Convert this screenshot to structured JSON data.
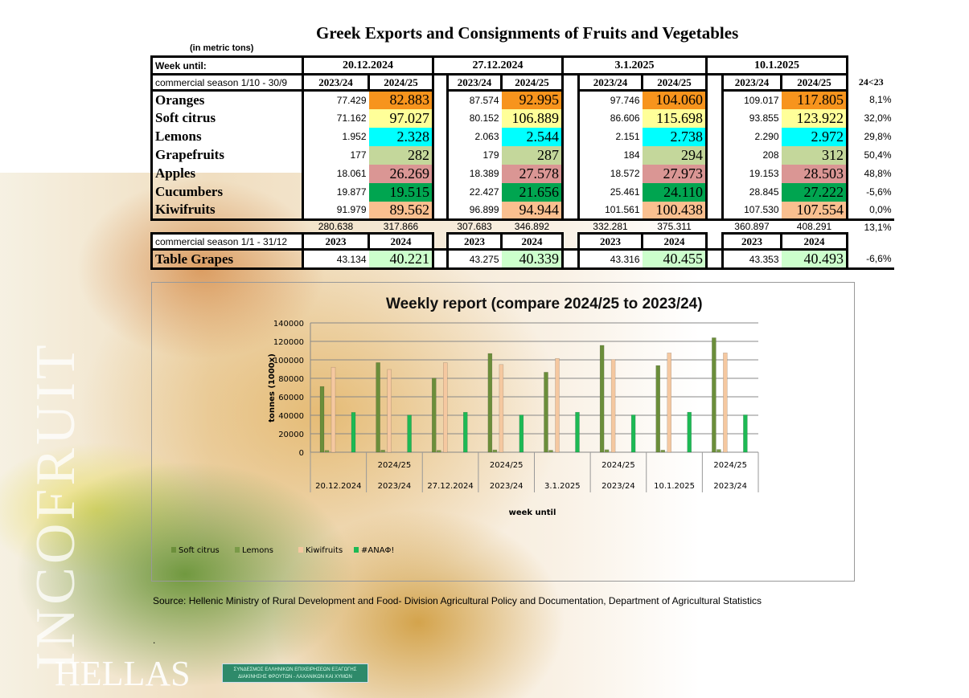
{
  "title": "Greek Exports and Consignments of Fruits and Vegetables",
  "units": "(in metric tons)",
  "table": {
    "week_until_label": "Week until:",
    "weeks": [
      "20.12.2024",
      "27.12.2024",
      "3.1.2025",
      "10.1.2025"
    ],
    "season1_label": "commercial season 1/10 - 30/9",
    "season1_cols": [
      "2023/24",
      "2024/25"
    ],
    "pct_header": "24<23",
    "rows": [
      {
        "name": "Oranges",
        "color": "#f7941d",
        "values": [
          [
            "77.429",
            "82.883"
          ],
          [
            "87.574",
            "92.995"
          ],
          [
            "97.746",
            "104.060"
          ],
          [
            "109.017",
            "117.805"
          ]
        ],
        "pct": "8,1%"
      },
      {
        "name": "Soft citrus",
        "color": "#ffff99",
        "values": [
          [
            "71.162",
            "97.027"
          ],
          [
            "80.152",
            "106.889"
          ],
          [
            "86.606",
            "115.698"
          ],
          [
            "93.855",
            "123.922"
          ]
        ],
        "pct": "32,0%"
      },
      {
        "name": "Lemons",
        "color": "#00ffff",
        "values": [
          [
            "1.952",
            "2.328"
          ],
          [
            "2.063",
            "2.544"
          ],
          [
            "2.151",
            "2.738"
          ],
          [
            "2.290",
            "2.972"
          ]
        ],
        "pct": "29,8%"
      },
      {
        "name": "Grapefruits",
        "color": "#c4d79b",
        "values": [
          [
            "177",
            "282"
          ],
          [
            "179",
            "287"
          ],
          [
            "184",
            "294"
          ],
          [
            "208",
            "312"
          ]
        ],
        "pct": "50,4%"
      },
      {
        "name": "Apples",
        "color": "#da9694",
        "values": [
          [
            "18.061",
            "26.269"
          ],
          [
            "18.389",
            "27.578"
          ],
          [
            "18.572",
            "27.973"
          ],
          [
            "19.153",
            "28.503"
          ]
        ],
        "pct": "48,8%"
      },
      {
        "name": "Cucumbers",
        "color": "#00a550",
        "values": [
          [
            "19.877",
            "19.515"
          ],
          [
            "22.427",
            "21.656"
          ],
          [
            "25.461",
            "24.110"
          ],
          [
            "28.845",
            "27.222"
          ]
        ],
        "pct": "-5,6%"
      },
      {
        "name": "Kiwifruits",
        "color": "#fabf8f",
        "values": [
          [
            "91.979",
            "89.562"
          ],
          [
            "96.899",
            "94.944"
          ],
          [
            "101.561",
            "100.438"
          ],
          [
            "107.530",
            "107.554"
          ]
        ],
        "pct": "0,0%"
      }
    ],
    "totals": [
      [
        "280.638",
        "317.866"
      ],
      [
        "307.683",
        "346.892"
      ],
      [
        "332.281",
        "375.311"
      ],
      [
        "360.897",
        "408.291"
      ]
    ],
    "totals_pct": "13,1%",
    "season2_label": "commercial season 1/1 - 31/12",
    "season2_cols": [
      "2023",
      "2024"
    ],
    "grapes": {
      "name": "Table Grapes",
      "color": "#ccffcc",
      "values": [
        [
          "43.134",
          "40.221"
        ],
        [
          "43.275",
          "40.339"
        ],
        [
          "43.316",
          "40.455"
        ],
        [
          "43.353",
          "40.493"
        ]
      ],
      "pct": "-6,6%"
    }
  },
  "chart_data": {
    "type": "bar",
    "title": "Weekly report (compare 2024/25 to 2023/24)",
    "xlabel": "week until",
    "ylabel": "tonnes (1000x)",
    "ylim": [
      0,
      140000
    ],
    "yticks": [
      0,
      20000,
      40000,
      60000,
      80000,
      100000,
      120000,
      140000
    ],
    "grid": true,
    "legend": "bottom-left",
    "categories_outer": [
      "20.12.2024",
      "2023/24",
      "27.12.2024",
      "2023/24",
      "3.1.2025",
      "2023/24",
      "10.1.2025",
      "2023/24"
    ],
    "categories_inner": [
      "",
      "2024/25",
      "",
      "2024/25",
      "",
      "2024/25",
      "",
      "2024/25"
    ],
    "series": [
      {
        "name": "Soft citrus",
        "color": "#6b8e3a",
        "values": [
          71162,
          97027,
          80152,
          106889,
          86606,
          115698,
          93855,
          123922
        ]
      },
      {
        "name": "Lemons",
        "color": "#7a9a48",
        "values": [
          1952,
          2328,
          2063,
          2544,
          2151,
          2738,
          2290,
          2972
        ]
      },
      {
        "name": "Kiwifruits",
        "color": "#f5c8a0",
        "values": [
          91979,
          89562,
          96899,
          94944,
          101561,
          100438,
          107530,
          107554
        ]
      },
      {
        "name": "#ΑΝΑΦ!",
        "color": "#1db954",
        "values": [
          43134,
          40221,
          43275,
          40339,
          43316,
          40455,
          43353,
          40493
        ]
      }
    ]
  },
  "source": "Source: Hellenic Ministry of Rural Development and Food- Division Agricultural Policy and Documentation, Department of Agricultural Statistics",
  "dot": ".",
  "logo": {
    "brand": "INCOFRUIT",
    "country": "HELLAS",
    "association": "ΣΥΝΔΕΣΜΟΣ ΕΛΛΗΝΙΚΩΝ ΕΠΙΧΕΙΡΗΣΕΩΝ ΕΞΑΓΩΓΗΣ ΔΙΑΚΙΝΗΣΗΣ ΦΡΟΥΤΩΝ - ΛΑΧΑΝΙΚΩΝ ΚΑΙ ΧΥΜΩΝ"
  }
}
